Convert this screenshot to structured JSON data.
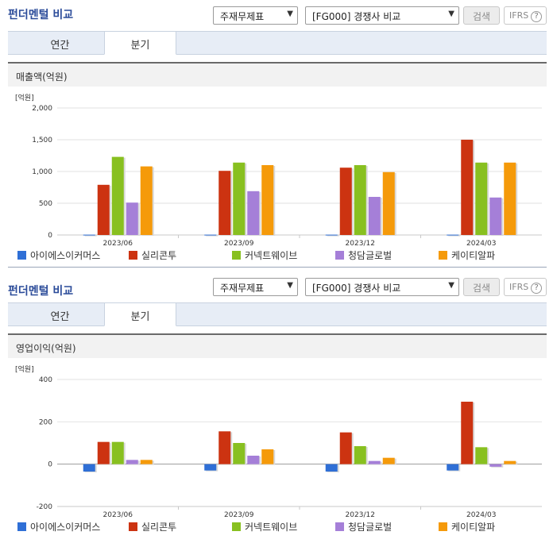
{
  "panels": [
    {
      "title": "펀더멘털 비교",
      "select1": "주재무제표",
      "select2": "[FG000] 경쟁사 비교",
      "search_label": "검색",
      "ifrs_label": "IFRS",
      "tabs": [
        {
          "label": "연간"
        },
        {
          "label": "분기"
        }
      ],
      "active_tab": "분기",
      "subtitle": "매출액(억원)"
    },
    {
      "title": "펀더멘털 비교",
      "select1": "주재무제표",
      "select2": "[FG000] 경쟁사 비교",
      "search_label": "검색",
      "ifrs_label": "IFRS",
      "tabs": [
        {
          "label": "연간"
        },
        {
          "label": "분기"
        }
      ],
      "active_tab": "분기",
      "subtitle": "영업이익(억원)"
    }
  ],
  "chart_data": [
    {
      "type": "bar",
      "unit_label": "[억원]",
      "categories": [
        "2023/06",
        "2023/09",
        "2023/12",
        "2024/03"
      ],
      "ylim": [
        0,
        2000
      ],
      "yticks": [
        0,
        500,
        1000,
        1500,
        2000
      ],
      "ytick_labels": [
        "0",
        "500",
        "1,000",
        "1,500",
        "2,000"
      ],
      "series": [
        {
          "name": "아이에스이커머스",
          "color": "#2f6fd6",
          "values": [
            5,
            5,
            5,
            5
          ]
        },
        {
          "name": "실리콘투",
          "color": "#cc3311",
          "values": [
            790,
            1010,
            1060,
            1500
          ]
        },
        {
          "name": "커넥트웨이브",
          "color": "#88c020",
          "values": [
            1230,
            1140,
            1100,
            1140
          ]
        },
        {
          "name": "청담글로벌",
          "color": "#a57fd8",
          "values": [
            510,
            690,
            600,
            590
          ]
        },
        {
          "name": "케이티알파",
          "color": "#f59a0a",
          "values": [
            1080,
            1100,
            990,
            1140
          ]
        }
      ]
    },
    {
      "type": "bar",
      "unit_label": "[억원]",
      "categories": [
        "2023/06",
        "2023/09",
        "2023/12",
        "2024/03"
      ],
      "ylim": [
        -200,
        400
      ],
      "yticks": [
        -200,
        0,
        200,
        400
      ],
      "ytick_labels": [
        "-200",
        "0",
        "200",
        "400"
      ],
      "series": [
        {
          "name": "아이에스이커머스",
          "color": "#2f6fd6",
          "values": [
            -35,
            -30,
            -35,
            -30
          ]
        },
        {
          "name": "실리콘투",
          "color": "#cc3311",
          "values": [
            105,
            155,
            150,
            295
          ]
        },
        {
          "name": "커넥트웨이브",
          "color": "#88c020",
          "values": [
            105,
            100,
            85,
            80
          ]
        },
        {
          "name": "청담글로벌",
          "color": "#a57fd8",
          "values": [
            20,
            40,
            15,
            -12
          ]
        },
        {
          "name": "케이티알파",
          "color": "#f59a0a",
          "values": [
            20,
            70,
            30,
            15
          ]
        }
      ]
    }
  ]
}
